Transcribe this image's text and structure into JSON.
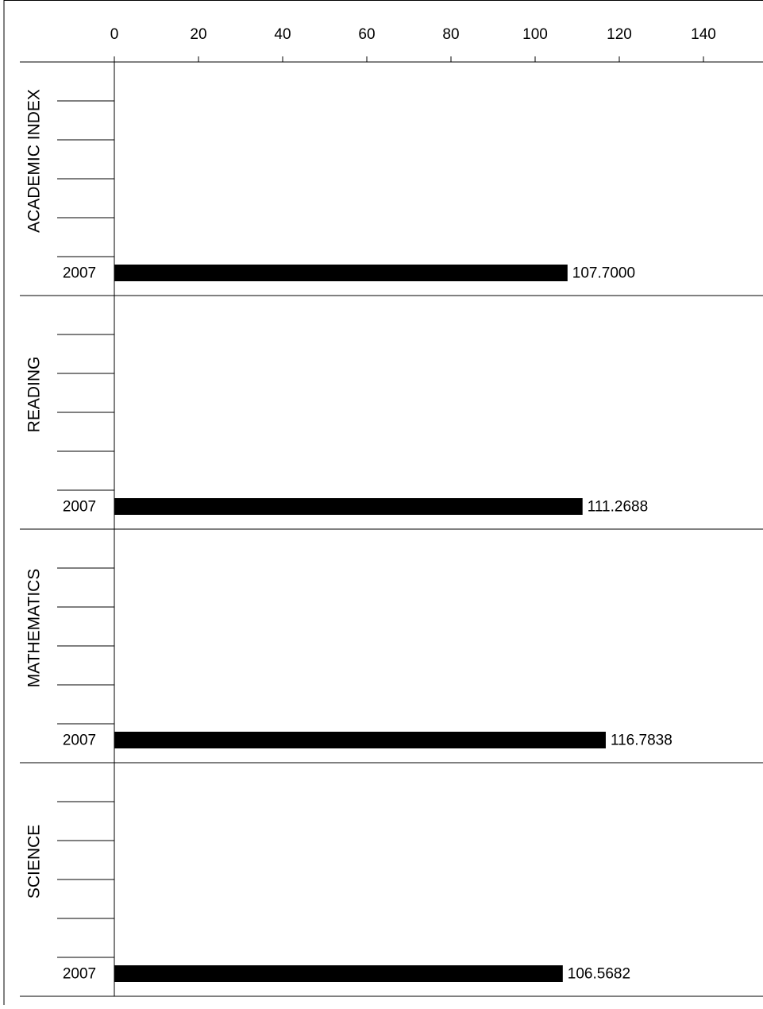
{
  "chart_data": {
    "type": "bar",
    "orientation": "horizontal",
    "x_axis": {
      "ticks": [
        "0",
        "20",
        "40",
        "60",
        "80",
        "100",
        "120",
        "140"
      ],
      "tick_values": [
        0,
        20,
        40,
        60,
        80,
        100,
        120,
        140
      ],
      "range": [
        0,
        150
      ],
      "position": "top"
    },
    "groups": [
      {
        "label": "ACADEMIC INDEX",
        "category": "2007",
        "value": 107.7,
        "value_label": "107.7000"
      },
      {
        "label": "READING",
        "category": "2007",
        "value": 111.2688,
        "value_label": "111.2688"
      },
      {
        "label": "MATHEMATICS",
        "category": "2007",
        "value": 116.7838,
        "value_label": "116.7838"
      },
      {
        "label": "SCIENCE",
        "category": "2007",
        "value": 106.5682,
        "value_label": "106.5682"
      }
    ],
    "empty_rows_per_group": 4,
    "bar_color": "#000000",
    "grid": false,
    "legend": "none"
  }
}
